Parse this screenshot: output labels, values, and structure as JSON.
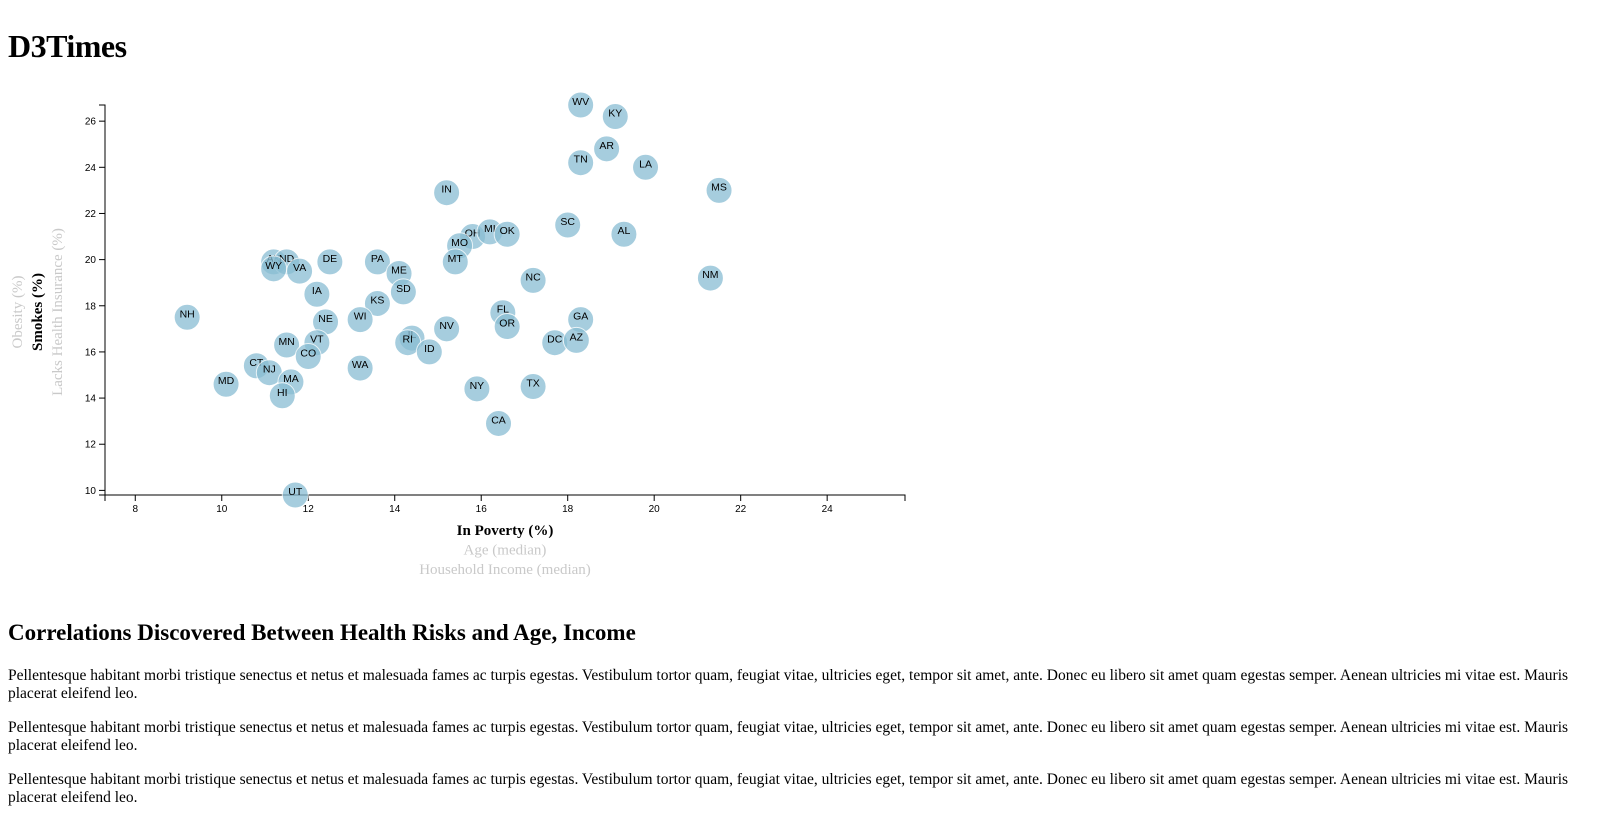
{
  "page": {
    "title": "D3Times",
    "section_heading": "Correlations Discovered Between Health Risks and Age, Income",
    "paragraphs": [
      "Pellentesque habitant morbi tristique senectus et netus et malesuada fames ac turpis egestas. Vestibulum tortor quam, feugiat vitae, ultricies eget, tempor sit amet, ante. Donec eu libero sit amet quam egestas semper. Aenean ultricies mi vitae est. Mauris placerat eleifend leo.",
      "Pellentesque habitant morbi tristique senectus et netus et malesuada fames ac turpis egestas. Vestibulum tortor quam, feugiat vitae, ultricies eget, tempor sit amet, ante. Donec eu libero sit amet quam egestas semper. Aenean ultricies mi vitae est. Mauris placerat eleifend leo.",
      "Pellentesque habitant morbi tristique senectus et netus et malesuada fames ac turpis egestas. Vestibulum tortor quam, feugiat vitae, ultricies eget, tempor sit amet, ante. Donec eu libero sit amet quam egestas semper. Aenean ultricies mi vitae est. Mauris placerat eleifend leo."
    ]
  },
  "chart_data": {
    "type": "scatter",
    "x_axis": {
      "labels": [
        {
          "id": "poverty",
          "text": "In Poverty (%)",
          "active": true
        },
        {
          "id": "age",
          "text": "Age (median)",
          "active": false
        },
        {
          "id": "income",
          "text": "Household Income (median)",
          "active": false
        }
      ],
      "range": [
        7.3,
        25.8
      ],
      "ticks": [
        8,
        10,
        12,
        14,
        16,
        18,
        20,
        22,
        24
      ]
    },
    "y_axis": {
      "labels": [
        {
          "id": "smokes",
          "text": "Smokes (%)",
          "active": true
        },
        {
          "id": "obesity",
          "text": "Obesity (%)",
          "active": false
        },
        {
          "id": "healthcare",
          "text": "Lacks Health Insurance (%)",
          "active": false
        }
      ],
      "range": [
        9.8,
        26.7
      ],
      "ticks": [
        10,
        12,
        14,
        16,
        18,
        20,
        22,
        24,
        26
      ]
    },
    "grid": false,
    "colors": {
      "point_fill": "#89bdd3",
      "point_stroke": "#ffffff",
      "active_label": "#000000",
      "inactive_label": "#c9c9c9"
    },
    "points": [
      {
        "state": "WV",
        "x": 18.3,
        "y": 26.7
      },
      {
        "state": "KY",
        "x": 19.1,
        "y": 26.2
      },
      {
        "state": "AR",
        "x": 18.9,
        "y": 24.8
      },
      {
        "state": "TN",
        "x": 18.3,
        "y": 24.2
      },
      {
        "state": "LA",
        "x": 19.8,
        "y": 24.0
      },
      {
        "state": "MS",
        "x": 21.5,
        "y": 23.0
      },
      {
        "state": "IN",
        "x": 15.2,
        "y": 22.9
      },
      {
        "state": "SC",
        "x": 18.0,
        "y": 21.5
      },
      {
        "state": "AL",
        "x": 19.3,
        "y": 21.1
      },
      {
        "state": "OH",
        "x": 15.8,
        "y": 21.0
      },
      {
        "state": "MI",
        "x": 16.2,
        "y": 21.2
      },
      {
        "state": "OK",
        "x": 16.6,
        "y": 21.1
      },
      {
        "state": "MO",
        "x": 15.5,
        "y": 20.6
      },
      {
        "state": "MT",
        "x": 15.4,
        "y": 19.9
      },
      {
        "state": "AK",
        "x": 11.2,
        "y": 19.9
      },
      {
        "state": "ND",
        "x": 11.5,
        "y": 19.9
      },
      {
        "state": "WY",
        "x": 11.2,
        "y": 19.6
      },
      {
        "state": "VA",
        "x": 11.8,
        "y": 19.5
      },
      {
        "state": "DE",
        "x": 12.5,
        "y": 19.9
      },
      {
        "state": "PA",
        "x": 13.6,
        "y": 19.9
      },
      {
        "state": "ME",
        "x": 14.1,
        "y": 19.4
      },
      {
        "state": "NC",
        "x": 17.2,
        "y": 19.1
      },
      {
        "state": "NM",
        "x": 21.3,
        "y": 19.2
      },
      {
        "state": "SD",
        "x": 14.2,
        "y": 18.6
      },
      {
        "state": "IA",
        "x": 12.2,
        "y": 18.5
      },
      {
        "state": "KS",
        "x": 13.6,
        "y": 18.1
      },
      {
        "state": "NH",
        "x": 9.2,
        "y": 17.5
      },
      {
        "state": "FL",
        "x": 16.5,
        "y": 17.7
      },
      {
        "state": "GA",
        "x": 18.3,
        "y": 17.4
      },
      {
        "state": "WI",
        "x": 13.2,
        "y": 17.4
      },
      {
        "state": "NE",
        "x": 12.4,
        "y": 17.3
      },
      {
        "state": "OR",
        "x": 16.6,
        "y": 17.1
      },
      {
        "state": "NV",
        "x": 15.2,
        "y": 17.0
      },
      {
        "state": "IL",
        "x": 14.4,
        "y": 16.6
      },
      {
        "state": "RI",
        "x": 14.3,
        "y": 16.4
      },
      {
        "state": "VT",
        "x": 12.2,
        "y": 16.4
      },
      {
        "state": "MN",
        "x": 11.5,
        "y": 16.3
      },
      {
        "state": "DC",
        "x": 17.7,
        "y": 16.4
      },
      {
        "state": "AZ",
        "x": 18.2,
        "y": 16.5
      },
      {
        "state": "ID",
        "x": 14.8,
        "y": 16.0
      },
      {
        "state": "CO",
        "x": 12.0,
        "y": 15.8
      },
      {
        "state": "CT",
        "x": 10.8,
        "y": 15.4
      },
      {
        "state": "NJ",
        "x": 11.1,
        "y": 15.1
      },
      {
        "state": "WA",
        "x": 13.2,
        "y": 15.3
      },
      {
        "state": "MA",
        "x": 11.6,
        "y": 14.7
      },
      {
        "state": "MD",
        "x": 10.1,
        "y": 14.6
      },
      {
        "state": "NY",
        "x": 15.9,
        "y": 14.4
      },
      {
        "state": "TX",
        "x": 17.2,
        "y": 14.5
      },
      {
        "state": "HI",
        "x": 11.4,
        "y": 14.1
      },
      {
        "state": "CA",
        "x": 16.4,
        "y": 12.9
      },
      {
        "state": "UT",
        "x": 11.7,
        "y": 9.8
      }
    ]
  }
}
